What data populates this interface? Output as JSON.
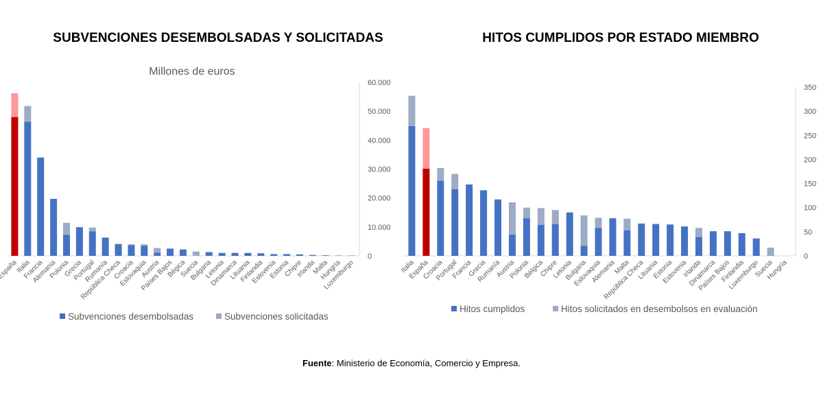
{
  "colors": {
    "desembolsado": "#4472C4",
    "solicitado": "#9DABC4",
    "espana_base": "#C00000",
    "espana_extra": "#FF9999",
    "axis": "#D9D9D9"
  },
  "source": {
    "label": "Fuente",
    "text": ": Ministerio de Economía, Comercio y Empresa."
  },
  "chart_data": [
    {
      "type": "bar",
      "stacked": true,
      "title": "SUBVENCIONES DESEMBOLSADAS Y SOLICITADAS",
      "subtitle": "Millones de euros",
      "ylim": [
        0,
        60000
      ],
      "yticks": [
        "0",
        "10.000",
        "20.000",
        "30.000",
        "40.000",
        "50.000",
        "60.000"
      ],
      "axis_position": "right",
      "legend_position": "bottom",
      "grid": false,
      "highlight": "España",
      "categories": [
        "España",
        "Italia",
        "Francia",
        "Alemania",
        "Polonia",
        "Grecia",
        "Portugal",
        "Rumanía",
        "República Checa",
        "Croacia",
        "Eslovaquia",
        "Austria",
        "Países Bajos",
        "Bégica",
        "Suecia",
        "Bulgaria",
        "Letonia",
        "Dinamarca",
        "Lituania",
        "Finlandia",
        "Eslovenia",
        "Estonia",
        "Chipre",
        "Irlanda",
        "Malta",
        "Hungría",
        "Luxemburgo"
      ],
      "series": [
        {
          "name": "Subvenciones desembolsadas",
          "values": [
            48000,
            46400,
            34000,
            19700,
            7300,
            9900,
            8500,
            6300,
            4100,
            3700,
            3500,
            1100,
            2500,
            2200,
            0,
            1300,
            1000,
            1000,
            1000,
            900,
            600,
            600,
            500,
            300,
            200,
            0,
            100
          ]
        },
        {
          "name": "Subvenciones solicitadas",
          "values": [
            8200,
            5400,
            0,
            0,
            4100,
            0,
            1300,
            0,
            0,
            300,
            500,
            1600,
            0,
            0,
            1500,
            0,
            0,
            0,
            0,
            0,
            0,
            0,
            0,
            0,
            0,
            200,
            0
          ]
        }
      ]
    },
    {
      "type": "bar",
      "stacked": true,
      "title": "HITOS CUMPLIDOS POR ESTADO MIEMBRO",
      "ylim": [
        0,
        350
      ],
      "yticks": [
        "0",
        "50",
        "100",
        "150",
        "200",
        "250",
        "300",
        "350"
      ],
      "axis_position": "right",
      "legend_position": "bottom",
      "grid": false,
      "highlight": "España",
      "categories": [
        "Italia",
        "España",
        "Croacia",
        "Portugal",
        "Francia",
        "Grecia",
        "Rumanía",
        "Austria",
        "Polonia",
        "Bélgica",
        "Chipre",
        "Letonia",
        "Bulgaria",
        "Eslovaquia",
        "Alemania",
        "Malta",
        "República Checa",
        "Lituania",
        "Estonia",
        "Eslovenia",
        "Irlanda",
        "Dinamarca",
        "Países Bajos",
        "Finlandia",
        "Luxemburgo",
        "Suecia",
        "Hungría"
      ],
      "series": [
        {
          "name": "Hitos cumplidos",
          "values": [
            269,
            181,
            156,
            138,
            148,
            136,
            117,
            44,
            78,
            64,
            66,
            90,
            21,
            58,
            78,
            53,
            67,
            66,
            65,
            61,
            39,
            51,
            51,
            47,
            36,
            0,
            0
          ]
        },
        {
          "name": "Hitos solicitados en desembolsos en evaluación",
          "values": [
            63,
            84,
            26,
            32,
            0,
            0,
            0,
            67,
            22,
            35,
            29,
            0,
            63,
            21,
            0,
            24,
            0,
            0,
            0,
            0,
            19,
            0,
            0,
            0,
            0,
            17,
            0
          ]
        }
      ]
    }
  ]
}
